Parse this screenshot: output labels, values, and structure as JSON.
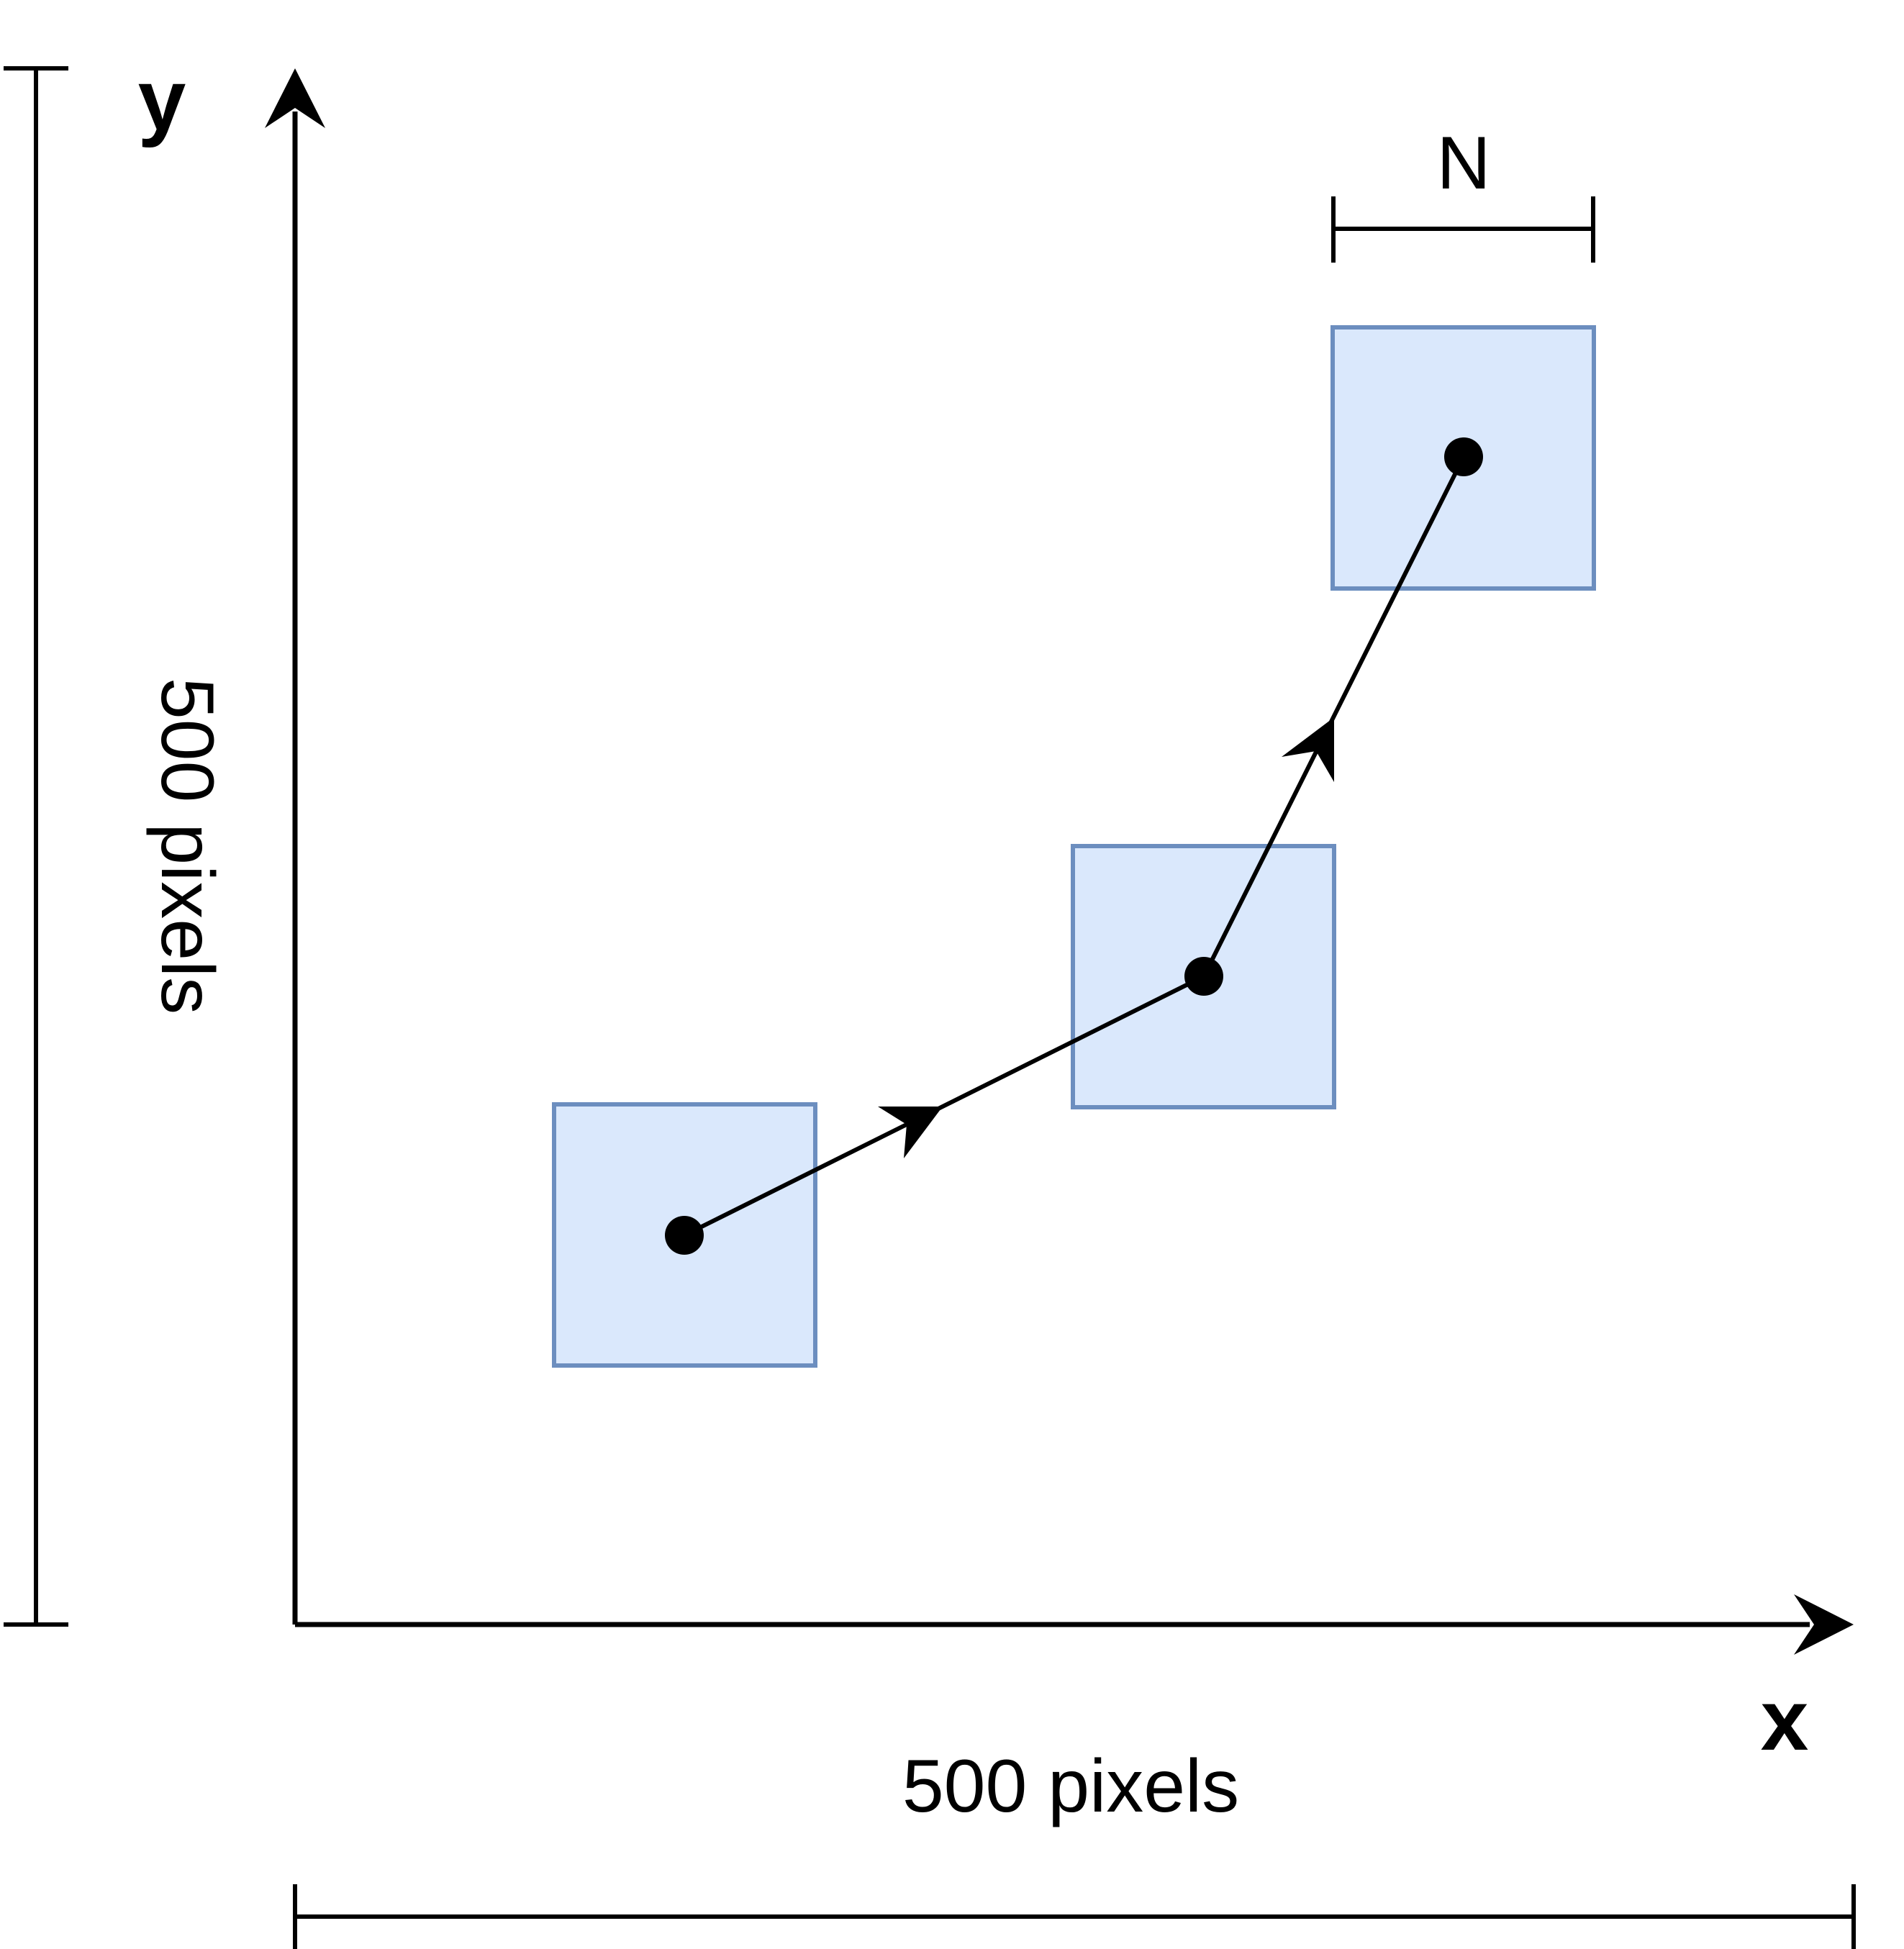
{
  "labels": {
    "y_axis": "y",
    "x_axis": "x",
    "width_label": "500 pixels",
    "height_label": "500 pixels",
    "box_size": "N"
  },
  "colors": {
    "line": "#000000",
    "box_fill": "#dae8fc",
    "box_stroke": "#6c8ebf",
    "background": "#ffffff"
  }
}
